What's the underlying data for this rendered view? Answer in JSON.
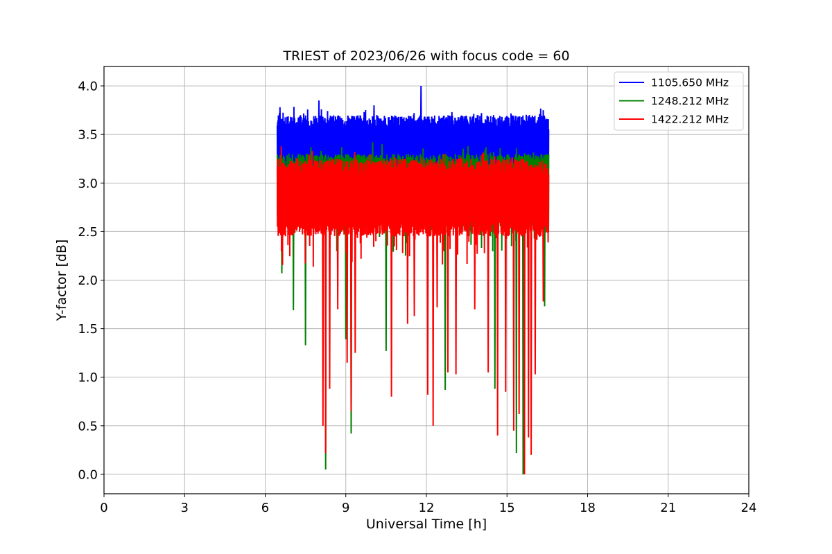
{
  "chart_data": {
    "type": "line",
    "title": "TRIEST of 2023/06/26 with focus code = 60",
    "xlabel": "Universal Time [h]",
    "ylabel": "Y-factor [dB]",
    "xlim": [
      0,
      24
    ],
    "ylim": [
      -0.2,
      4.2
    ],
    "xticks": [
      0,
      3,
      6,
      9,
      12,
      15,
      18,
      21,
      24
    ],
    "yticks": [
      0.0,
      0.5,
      1.0,
      1.5,
      2.0,
      2.5,
      3.0,
      3.5,
      4.0
    ],
    "ytick_labels": [
      "0.0",
      "0.5",
      "1.0",
      "1.5",
      "2.0",
      "2.5",
      "3.0",
      "3.5",
      "4.0"
    ],
    "grid": true,
    "legend_position": "top-right",
    "series": [
      {
        "name": "1105.650 MHz",
        "color": "#0000ff",
        "x_range": [
          6.45,
          16.55
        ],
        "baseline": 3.35,
        "upper": [
          3.55,
          3.7
        ],
        "lower": [
          2.95,
          3.15
        ],
        "spikes_up": [
          [
            11.8,
            4.0
          ],
          [
            6.55,
            3.78
          ],
          [
            8.0,
            3.85
          ],
          [
            10.05,
            3.8
          ],
          [
            12.95,
            3.73
          ],
          [
            14.05,
            3.72
          ],
          [
            14.5,
            3.7
          ],
          [
            16.35,
            3.75
          ]
        ],
        "spikes_down": []
      },
      {
        "name": "1248.212 MHz",
        "color": "#008000",
        "x_range": [
          6.45,
          16.55
        ],
        "baseline": 2.95,
        "upper": [
          3.15,
          3.3
        ],
        "lower": [
          2.55,
          2.75
        ],
        "spikes_up": [
          [
            10.0,
            3.42
          ],
          [
            10.35,
            3.4
          ],
          [
            13.55,
            3.38
          ],
          [
            7.7,
            3.37
          ]
        ],
        "spikes_down": [
          [
            8.25,
            0.05
          ],
          [
            9.2,
            0.42
          ],
          [
            6.62,
            2.07
          ],
          [
            7.05,
            1.69
          ],
          [
            7.5,
            1.33
          ],
          [
            9.0,
            1.39
          ],
          [
            10.5,
            1.27
          ],
          [
            12.7,
            0.87
          ],
          [
            14.55,
            0.88
          ],
          [
            15.35,
            0.22
          ],
          [
            15.6,
            0.0
          ],
          [
            16.4,
            1.73
          ]
        ]
      },
      {
        "name": "1422.212 MHz",
        "color": "#ff0000",
        "x_range": [
          6.45,
          16.55
        ],
        "baseline": 2.85,
        "upper": [
          3.05,
          3.25
        ],
        "lower": [
          2.45,
          2.65
        ],
        "spikes_up": [
          [
            6.6,
            3.38
          ],
          [
            7.75,
            3.33
          ],
          [
            9.9,
            3.3
          ]
        ],
        "spikes_down": [
          [
            8.25,
            0.22
          ],
          [
            8.15,
            0.5
          ],
          [
            8.4,
            0.88
          ],
          [
            8.7,
            1.7
          ],
          [
            9.05,
            1.15
          ],
          [
            9.2,
            0.65
          ],
          [
            9.35,
            1.25
          ],
          [
            10.7,
            0.8
          ],
          [
            11.3,
            1.55
          ],
          [
            11.55,
            1.63
          ],
          [
            12.05,
            0.82
          ],
          [
            12.25,
            0.5
          ],
          [
            12.4,
            1.72
          ],
          [
            12.8,
            1.05
          ],
          [
            13.1,
            1.03
          ],
          [
            13.8,
            1.7
          ],
          [
            14.3,
            1.05
          ],
          [
            14.65,
            0.4
          ],
          [
            14.95,
            0.85
          ],
          [
            15.25,
            0.45
          ],
          [
            15.45,
            0.62
          ],
          [
            15.65,
            0.0
          ],
          [
            15.8,
            0.38
          ],
          [
            15.9,
            0.2
          ],
          [
            16.05,
            1.03
          ],
          [
            16.35,
            1.78
          ]
        ]
      }
    ]
  }
}
